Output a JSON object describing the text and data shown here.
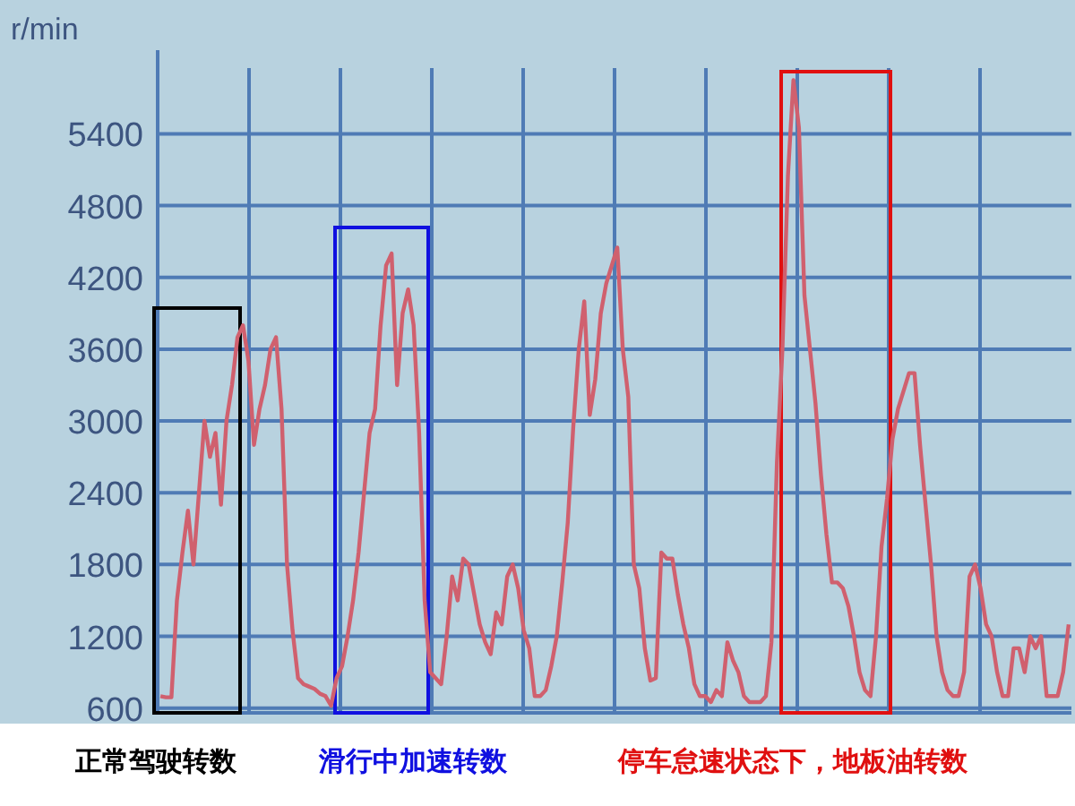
{
  "chart_data": {
    "type": "line",
    "ylabel": "r/min",
    "categories": [
      null,
      null,
      null,
      null,
      null,
      null,
      null,
      null,
      null,
      null,
      null,
      null,
      null,
      null,
      null,
      null,
      null,
      null,
      null,
      null,
      null,
      null,
      null,
      null,
      null,
      null,
      null,
      null,
      null,
      null,
      null,
      null,
      null,
      null,
      null,
      null,
      null,
      null,
      null,
      null,
      null,
      null,
      null,
      null,
      null,
      null,
      null,
      null,
      null,
      null,
      null,
      null,
      null,
      null,
      null,
      null,
      null,
      null,
      null,
      null,
      null,
      null,
      null,
      null,
      null,
      null,
      null,
      null,
      null,
      null,
      null,
      null,
      null,
      null,
      null,
      null,
      null,
      null,
      null,
      null,
      null,
      null,
      null,
      null,
      null,
      null,
      null,
      null,
      null,
      null,
      null,
      null,
      null,
      null,
      null,
      null,
      null,
      null,
      null,
      null,
      null,
      null,
      null,
      null,
      null,
      null,
      null,
      null,
      null,
      null,
      null,
      null,
      null,
      null,
      null,
      null,
      null,
      null,
      null,
      null,
      null,
      null,
      null,
      null,
      null,
      null,
      null,
      null,
      null,
      null,
      null,
      null,
      null,
      null,
      null,
      null,
      null,
      null,
      null,
      null,
      null,
      null,
      null,
      null,
      null,
      null,
      null,
      null,
      null,
      null,
      null,
      null,
      null,
      null,
      null,
      null,
      null,
      null,
      null,
      null,
      null,
      null,
      null,
      null,
      null,
      null
    ],
    "series": [
      {
        "color": "#d0606e",
        "values": [
          700,
          690,
          690,
          1500,
          1900,
          2250,
          1800,
          2400,
          3000,
          2700,
          2900,
          2300,
          3000,
          3300,
          3700,
          3800,
          3500,
          2800,
          3100,
          3300,
          3600,
          3700,
          3100,
          1800,
          1250,
          850,
          800,
          780,
          760,
          720,
          700,
          620,
          850,
          950,
          1200,
          1500,
          1900,
          2400,
          2900,
          3100,
          3800,
          4300,
          4400,
          3300,
          3900,
          4100,
          3800,
          2900,
          1500,
          900,
          850,
          800,
          1200,
          1700,
          1500,
          1850,
          1800,
          1550,
          1300,
          1150,
          1050,
          1400,
          1300,
          1700,
          1800,
          1600,
          1250,
          1100,
          700,
          700,
          750,
          950,
          1200,
          1650,
          2150,
          2950,
          3600,
          4000,
          3050,
          3350,
          3900,
          4150,
          4300,
          4450,
          3600,
          3200,
          1800,
          1600,
          1100,
          830,
          850,
          1900,
          1850,
          1850,
          1550,
          1300,
          1100,
          800,
          700,
          700,
          650,
          750,
          700,
          1150,
          1000,
          900,
          700,
          650,
          650,
          650,
          700,
          1150,
          2650,
          3600,
          5050,
          5850,
          5450,
          4050,
          3600,
          3150,
          2550,
          2050,
          1650,
          1650,
          1600,
          1450,
          1200,
          900,
          750,
          700,
          1200,
          1950,
          2350,
          2850,
          3100,
          3250,
          3400,
          3400,
          2800,
          2300,
          1800,
          1200,
          900,
          750,
          700,
          700,
          900,
          1700,
          1800,
          1600,
          1300,
          1200,
          900,
          700,
          700,
          1100,
          1100,
          900,
          1200,
          1100,
          1200,
          700,
          700,
          700,
          900,
          1300
        ]
      }
    ],
    "ylim": [
      560,
      5950
    ],
    "yticks": [
      600,
      1200,
      1800,
      2400,
      3000,
      3600,
      4200,
      4800,
      5400
    ],
    "grid": true,
    "annotations": [
      "正常驾驶转数",
      "滑行中加速转数",
      "停车怠速状态下，地板油转数"
    ]
  }
}
